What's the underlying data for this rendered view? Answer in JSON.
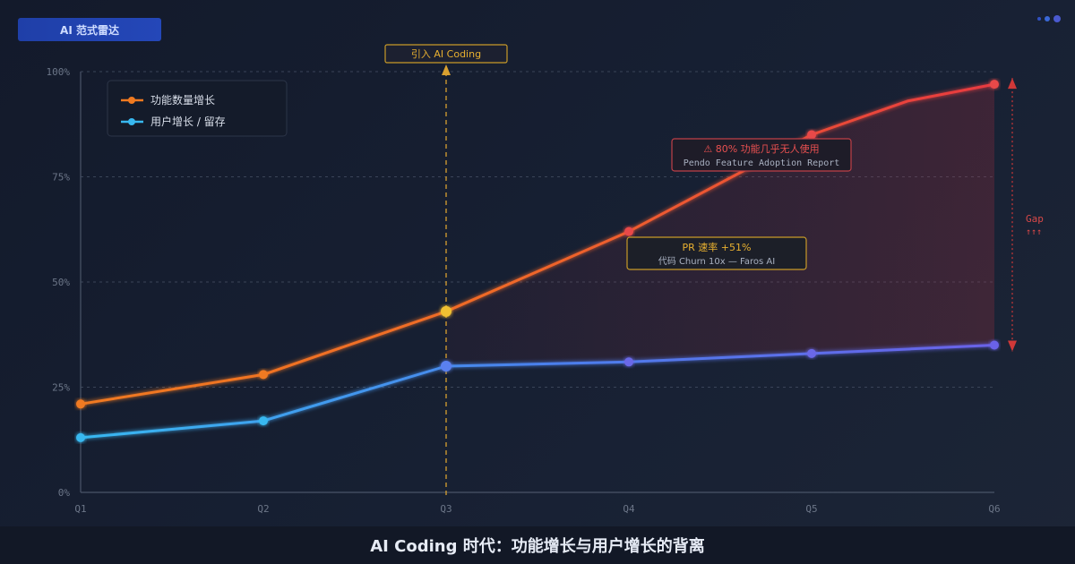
{
  "header": {
    "badge_label": "AI 范式雷达",
    "dots_icon": "window-dots-icon"
  },
  "footer": {
    "title": "AI Coding 时代：功能增长与用户增长的背离"
  },
  "colors": {
    "background": "#151c2c",
    "feature_line": "#f0602a",
    "user_line": "#4aa0f0",
    "highlight": "#e8b030",
    "alert": "#e04848",
    "gap_arrow": "#d03838"
  },
  "chart_data": {
    "type": "line",
    "categories": [
      "Q1",
      "Q2",
      "Q3",
      "Q4",
      "Q5",
      "Q6"
    ],
    "y_tick_labels": [
      "0%",
      "25%",
      "50%",
      "75%",
      "100%"
    ],
    "ylim": [
      0,
      100
    ],
    "grid": true,
    "legend_position": "top-left",
    "series": [
      {
        "name": "功能数量增长",
        "values": [
          21,
          28,
          43,
          62,
          85,
          97
        ]
      },
      {
        "name": "用户增长 / 留存",
        "values": [
          13,
          17,
          30,
          31,
          33,
          35
        ]
      }
    ],
    "feature_point_q5_5": 93,
    "annotations": {
      "ai_coding_marker": {
        "label": "引入 AI Coding",
        "at": "Q3"
      },
      "alert_box": {
        "line1": "⚠ 80% 功能几乎无人使用",
        "line2": "Pendo Feature Adoption Report"
      },
      "pr_box": {
        "line1": "PR 速率 +51%",
        "line2": "代码 Churn 10x — Faros AI"
      },
      "gap_label": {
        "line1": "Gap",
        "line2": "↑↑↑"
      }
    }
  }
}
